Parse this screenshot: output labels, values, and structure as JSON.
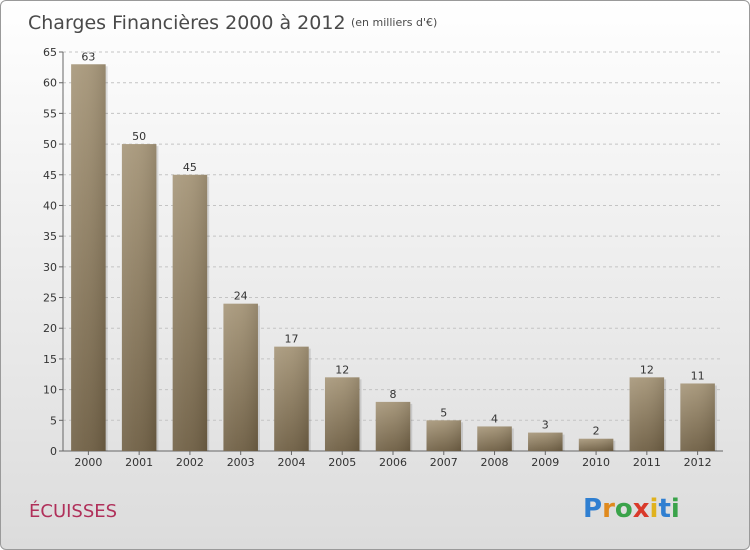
{
  "title": "Charges Financières 2000 à 2012",
  "unit": "(en milliers d'€)",
  "commune": "ÉCUISSES",
  "logo": "Proxiti",
  "colors": {
    "bar_top": "#a69679",
    "bar_bottom": "#6f5f44",
    "commune": "#b0305a"
  },
  "chart_data": {
    "type": "bar",
    "categories": [
      "2000",
      "2001",
      "2002",
      "2003",
      "2004",
      "2005",
      "2006",
      "2007",
      "2008",
      "2009",
      "2010",
      "2011",
      "2012"
    ],
    "values": [
      63,
      50,
      45,
      24,
      17,
      12,
      8,
      5,
      4,
      3,
      2,
      12,
      11
    ],
    "ylim": [
      0,
      65
    ],
    "yticks": [
      0,
      5,
      10,
      15,
      20,
      25,
      30,
      35,
      40,
      45,
      50,
      55,
      60,
      65
    ],
    "grid": true
  }
}
